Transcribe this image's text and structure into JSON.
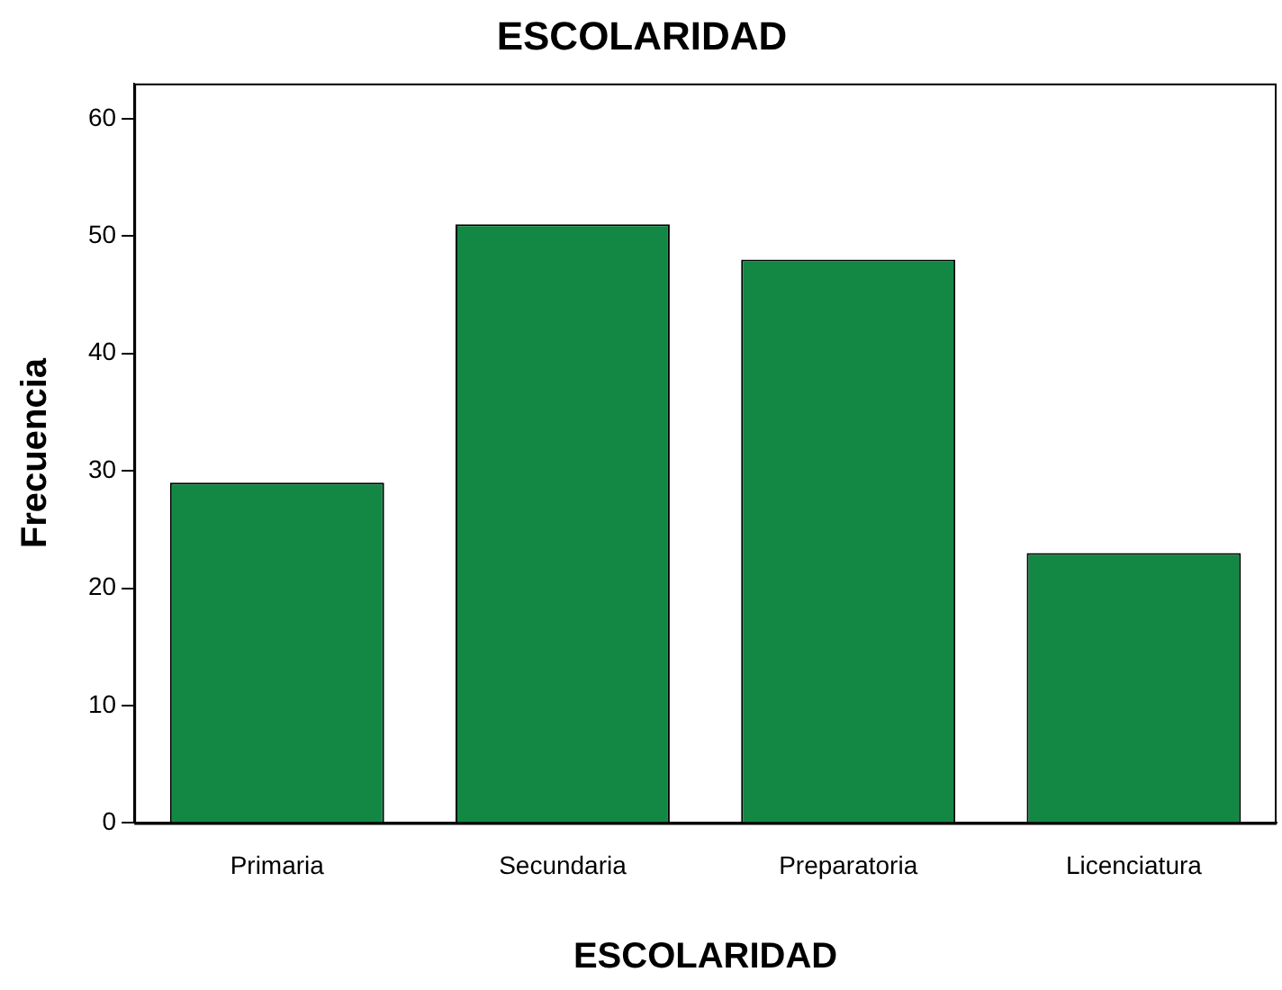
{
  "chart_data": {
    "type": "bar",
    "title": "ESCOLARIDAD",
    "xlabel": "ESCOLARIDAD",
    "ylabel": "Frecuencia",
    "categories": [
      "Primaria",
      "Secundaria",
      "Preparatoria",
      "Licenciatura"
    ],
    "values": [
      29,
      51,
      48,
      23
    ],
    "color": "#138744",
    "ylim": [
      0,
      63
    ],
    "yticks": [
      0,
      10,
      20,
      30,
      40,
      50,
      60
    ],
    "grid": false,
    "legend": false
  }
}
